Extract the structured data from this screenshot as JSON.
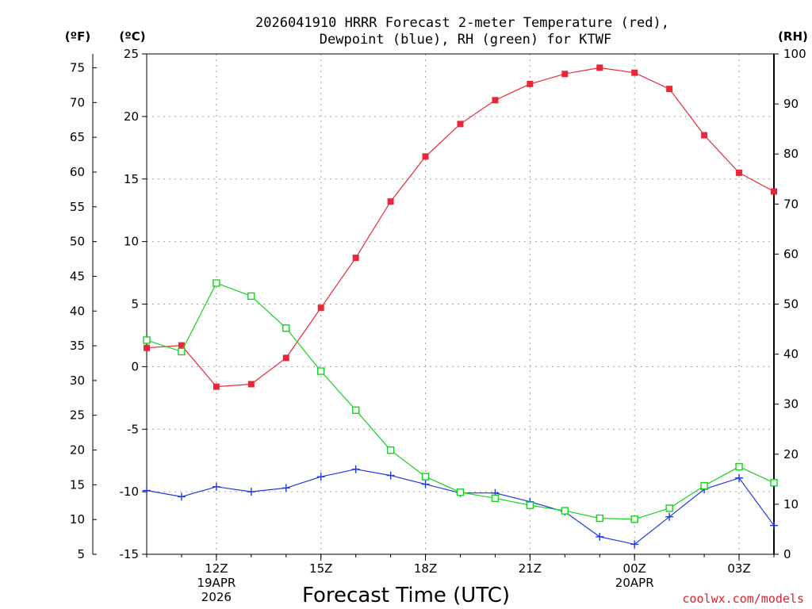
{
  "chart_data": {
    "type": "line",
    "title_line1": "2026041910 HRRR Forecast 2-meter Temperature (red),",
    "title_line2": "Dewpoint (blue), RH (green) for KTWF",
    "xlabel": "Forecast Time (UTC)",
    "credit": "coolwx.com/models",
    "unit_labels": {
      "fahrenheit": "(ºF)",
      "celsius": "(ºC)",
      "rh": "(RH)"
    },
    "x_hours": [
      10,
      11,
      12,
      13,
      14,
      15,
      16,
      17,
      18,
      19,
      20,
      21,
      22,
      23,
      24,
      25,
      26,
      27,
      28
    ],
    "x_range": [
      10,
      28
    ],
    "x_ticks": [
      {
        "hour": 12,
        "lines": [
          "12Z",
          "19APR",
          "2026"
        ]
      },
      {
        "hour": 15,
        "lines": [
          "15Z"
        ]
      },
      {
        "hour": 18,
        "lines": [
          "18Z"
        ]
      },
      {
        "hour": 21,
        "lines": [
          "21Z"
        ]
      },
      {
        "hour": 24,
        "lines": [
          "00Z",
          "20APR"
        ]
      },
      {
        "hour": 27,
        "lines": [
          "03Z"
        ]
      }
    ],
    "celsius_axis": {
      "min": -15,
      "max": 25,
      "ticks": [
        "-15",
        "-10",
        "-5",
        "0",
        "5",
        "10",
        "15",
        "20",
        "25"
      ]
    },
    "fahrenheit_axis": {
      "ticks": [
        "5",
        "10",
        "15",
        "20",
        "25",
        "30",
        "35",
        "40",
        "45",
        "50",
        "55",
        "60",
        "65",
        "70",
        "75"
      ]
    },
    "rh_axis": {
      "min": 0,
      "max": 100,
      "ticks": [
        "0",
        "10",
        "20",
        "30",
        "40",
        "50",
        "60",
        "70",
        "80",
        "90",
        "100"
      ]
    },
    "series": [
      {
        "name": "Temperature",
        "axis": "celsius",
        "color": "#e8283a",
        "marker": "filled-square",
        "values": [
          1.5,
          1.7,
          -1.6,
          -1.4,
          0.7,
          4.7,
          8.7,
          13.2,
          16.8,
          19.4,
          21.3,
          22.6,
          23.4,
          23.9,
          23.5,
          22.2,
          18.5,
          15.5,
          14.0
        ]
      },
      {
        "name": "Dewpoint",
        "axis": "celsius",
        "color": "#2038e0",
        "marker": "plus",
        "values": [
          -9.9,
          -10.4,
          -9.6,
          -10.0,
          -9.7,
          -8.8,
          -8.2,
          -8.7,
          -9.4,
          -10.1,
          -10.1,
          -10.8,
          -11.6,
          -13.6,
          -14.2,
          -12.0,
          -9.8,
          -8.9,
          -12.7
        ]
      },
      {
        "name": "RH",
        "axis": "rh",
        "color": "#18d020",
        "marker": "open-square",
        "values": [
          42.8,
          40.5,
          54.2,
          51.6,
          45.2,
          36.6,
          28.8,
          20.8,
          15.5,
          12.4,
          11.2,
          9.8,
          8.7,
          7.2,
          7.0,
          9.2,
          13.7,
          17.5,
          14.3
        ]
      }
    ]
  }
}
